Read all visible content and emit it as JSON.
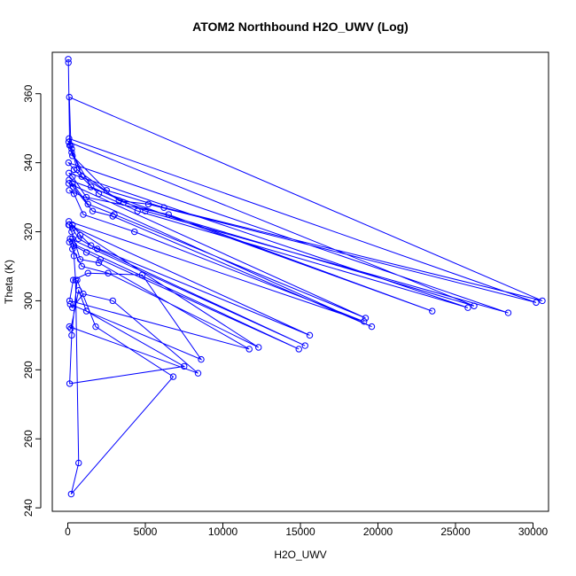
{
  "chart_data": {
    "type": "line",
    "title": "ATOM2 Northbound H2O_UWV (Log)",
    "xlabel": "H2O_UWV",
    "ylabel": "Theta (K)",
    "xlim": [
      -1000,
      31000
    ],
    "ylim": [
      239,
      372
    ],
    "x_ticks": [
      0,
      5000,
      10000,
      15000,
      20000,
      25000,
      30000
    ],
    "y_ticks": [
      240,
      260,
      280,
      300,
      320,
      340,
      360
    ],
    "x_tick_labels": [
      "0",
      "5000",
      "10000",
      "15000",
      "20000",
      "25000",
      "30000"
    ],
    "y_tick_labels": [
      "240",
      "260",
      "280",
      "300",
      "320",
      "340",
      "360"
    ],
    "grid": false,
    "legend": "none",
    "series": [
      {
        "color": "#0000ff",
        "marker": "open-circle",
        "points": [
          [
            30,
            370
          ],
          [
            40,
            369
          ],
          [
            120,
            345
          ],
          [
            300,
            342
          ],
          [
            2500,
            332
          ],
          [
            6200,
            327
          ],
          [
            30600,
            300
          ],
          [
            100,
            359
          ],
          [
            200,
            345
          ],
          [
            600,
            338
          ],
          [
            3300,
            329
          ],
          [
            5200,
            328
          ],
          [
            30200,
            299.5
          ],
          [
            80,
            347
          ],
          [
            250,
            344
          ],
          [
            900,
            336
          ],
          [
            3600,
            328.5
          ],
          [
            26200,
            298.5
          ],
          [
            60,
            346
          ],
          [
            250,
            343
          ],
          [
            1500,
            333
          ],
          [
            5000,
            326
          ],
          [
            28400,
            296.5
          ],
          [
            50,
            340
          ],
          [
            400,
            338
          ],
          [
            2000,
            331
          ],
          [
            4500,
            326
          ],
          [
            25800,
            298
          ],
          [
            70,
            337
          ],
          [
            300,
            336
          ],
          [
            1200,
            330
          ],
          [
            6500,
            325
          ],
          [
            23500,
            297
          ],
          [
            80,
            335
          ],
          [
            300,
            334
          ],
          [
            1300,
            328
          ],
          [
            3000,
            325
          ],
          [
            19200,
            295
          ],
          [
            60,
            334
          ],
          [
            350,
            333
          ],
          [
            1600,
            326
          ],
          [
            2900,
            324.5
          ],
          [
            19600,
            292.5
          ],
          [
            90,
            332
          ],
          [
            400,
            331
          ],
          [
            1000,
            325
          ],
          [
            4300,
            320
          ],
          [
            19100,
            294
          ],
          [
            70,
            323
          ],
          [
            300,
            322
          ],
          [
            800,
            319
          ],
          [
            1500,
            316
          ],
          [
            15600,
            290
          ],
          [
            60,
            322
          ],
          [
            300,
            321
          ],
          [
            700,
            318
          ],
          [
            1900,
            315
          ],
          [
            15300,
            287
          ],
          [
            150,
            318
          ],
          [
            400,
            316
          ],
          [
            1200,
            314
          ],
          [
            2100,
            312
          ],
          [
            14900,
            286
          ],
          [
            100,
            317
          ],
          [
            300,
            315
          ],
          [
            900,
            310
          ],
          [
            2600,
            308
          ],
          [
            12300,
            286.5
          ],
          [
            90,
            322
          ],
          [
            250,
            320
          ],
          [
            800,
            312
          ],
          [
            2000,
            311
          ],
          [
            11700,
            286
          ],
          [
            120,
            300
          ],
          [
            350,
            306
          ],
          [
            1300,
            308
          ],
          [
            4800,
            307.5
          ],
          [
            8600,
            283
          ],
          [
            160,
            299
          ],
          [
            300,
            298
          ],
          [
            1000,
            302
          ],
          [
            2900,
            300
          ],
          [
            8400,
            279
          ],
          [
            100,
            292.5
          ],
          [
            200,
            292
          ],
          [
            700,
            303
          ],
          [
            1200,
            297
          ],
          [
            7500,
            281
          ],
          [
            120,
            276
          ],
          [
            250,
            290
          ],
          [
            600,
            306
          ],
          [
            1800,
            292.5
          ],
          [
            6800,
            278
          ],
          [
            220,
            244
          ],
          [
            700,
            253
          ],
          [
            500,
            306
          ],
          [
            400,
            313
          ],
          [
            300,
            318
          ]
        ]
      }
    ]
  }
}
